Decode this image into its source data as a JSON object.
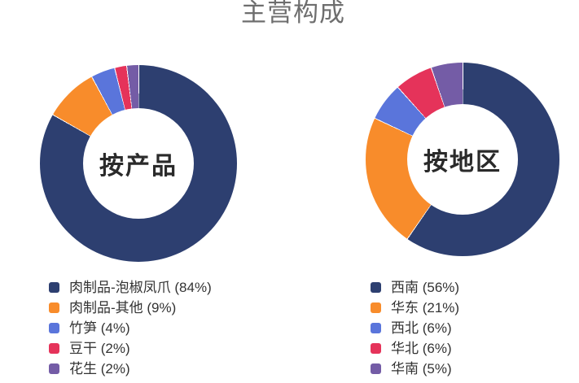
{
  "page": {
    "title": "主营构成",
    "background": "#ffffff",
    "title_color": "#6e6e6e"
  },
  "chart_data": [
    {
      "type": "pie",
      "variant": "donut",
      "center_label": "按产品",
      "legend_position": "bottom-left",
      "labels": [
        "肉制品-泡椒凤爪",
        "肉制品-其他",
        "竹笋",
        "豆干",
        "花生"
      ],
      "values": [
        84,
        9,
        4,
        2,
        2
      ],
      "unit": "%",
      "legend_labels": [
        "肉制品-泡椒凤爪 (84%)",
        "肉制品-其他 (9%)",
        "竹笋 (4%)",
        "豆干 (2%)",
        "花生 (2%)"
      ],
      "colors": [
        "#2d3f70",
        "#f88c2b",
        "#5a75db",
        "#e5335a",
        "#745ca6"
      ],
      "start_angle_deg": 0,
      "direction": "clockwise"
    },
    {
      "type": "pie",
      "variant": "donut",
      "center_label": "按地区",
      "legend_position": "bottom-left",
      "labels": [
        "西南",
        "华东",
        "西北",
        "华北",
        "华南"
      ],
      "values": [
        56,
        21,
        6,
        6,
        5
      ],
      "unit": "%",
      "legend_labels": [
        "西南 (56%)",
        "华东 (21%)",
        "西北 (6%)",
        "华北 (6%)",
        "华南 (5%)"
      ],
      "colors": [
        "#2d3f70",
        "#f88c2b",
        "#5a75db",
        "#e5335a",
        "#745ca6"
      ],
      "start_angle_deg": 0,
      "direction": "clockwise"
    }
  ]
}
